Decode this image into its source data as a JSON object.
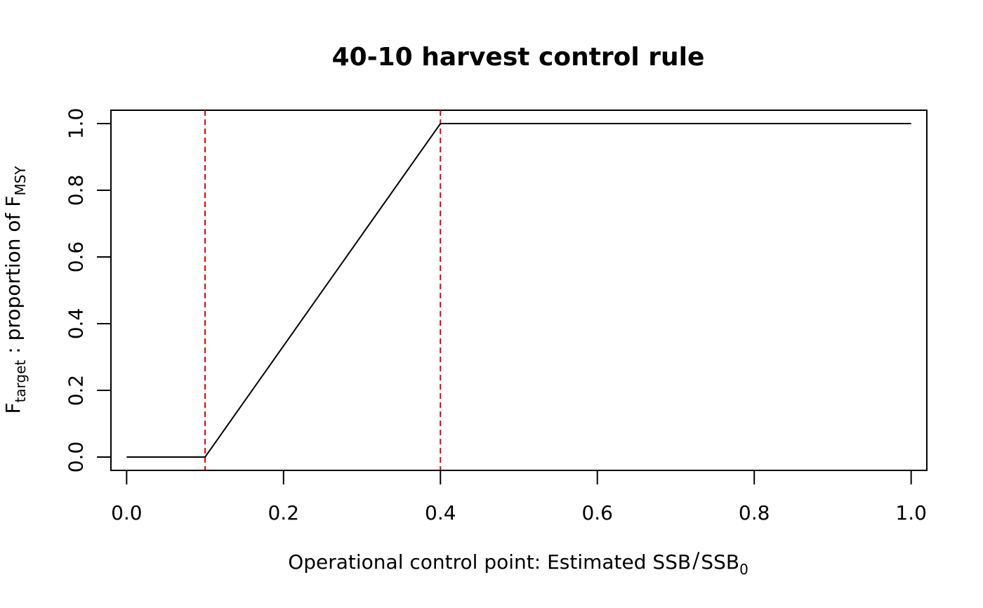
{
  "chart_data": {
    "type": "line",
    "title": "40-10 harvest control rule",
    "xlabel": {
      "prefix": "Operational control point: Estimated ",
      "numerator": "SSB",
      "slash": "/",
      "denominator": "SSB",
      "denominator_subscript": "0"
    },
    "ylabel": {
      "main1": "F",
      "sub1": "target",
      "middle": " : proportion of ",
      "main2": "F",
      "sub2": "MSY"
    },
    "xlim": [
      -0.02,
      1.02
    ],
    "ylim": [
      -0.04,
      1.04
    ],
    "x_ticks": [
      0.0,
      0.2,
      0.4,
      0.6,
      0.8,
      1.0
    ],
    "x_tick_labels": [
      "0.0",
      "0.2",
      "0.4",
      "0.6",
      "0.8",
      "1.0"
    ],
    "y_ticks": [
      0.0,
      0.2,
      0.4,
      0.6,
      0.8,
      1.0
    ],
    "y_tick_labels": [
      "0.0",
      "0.2",
      "0.4",
      "0.6",
      "0.8",
      "1.0"
    ],
    "grid": false,
    "series": [
      {
        "x": [
          0.0,
          0.1,
          0.4,
          1.0
        ],
        "y": [
          0.0,
          0.0,
          1.0,
          1.0
        ],
        "color": "#000000"
      }
    ],
    "reference_lines": [
      {
        "x": 0.1,
        "color": "#dd0000",
        "style": "dashed"
      },
      {
        "x": 0.4,
        "color": "#dd0000",
        "style": "dashed"
      }
    ]
  }
}
